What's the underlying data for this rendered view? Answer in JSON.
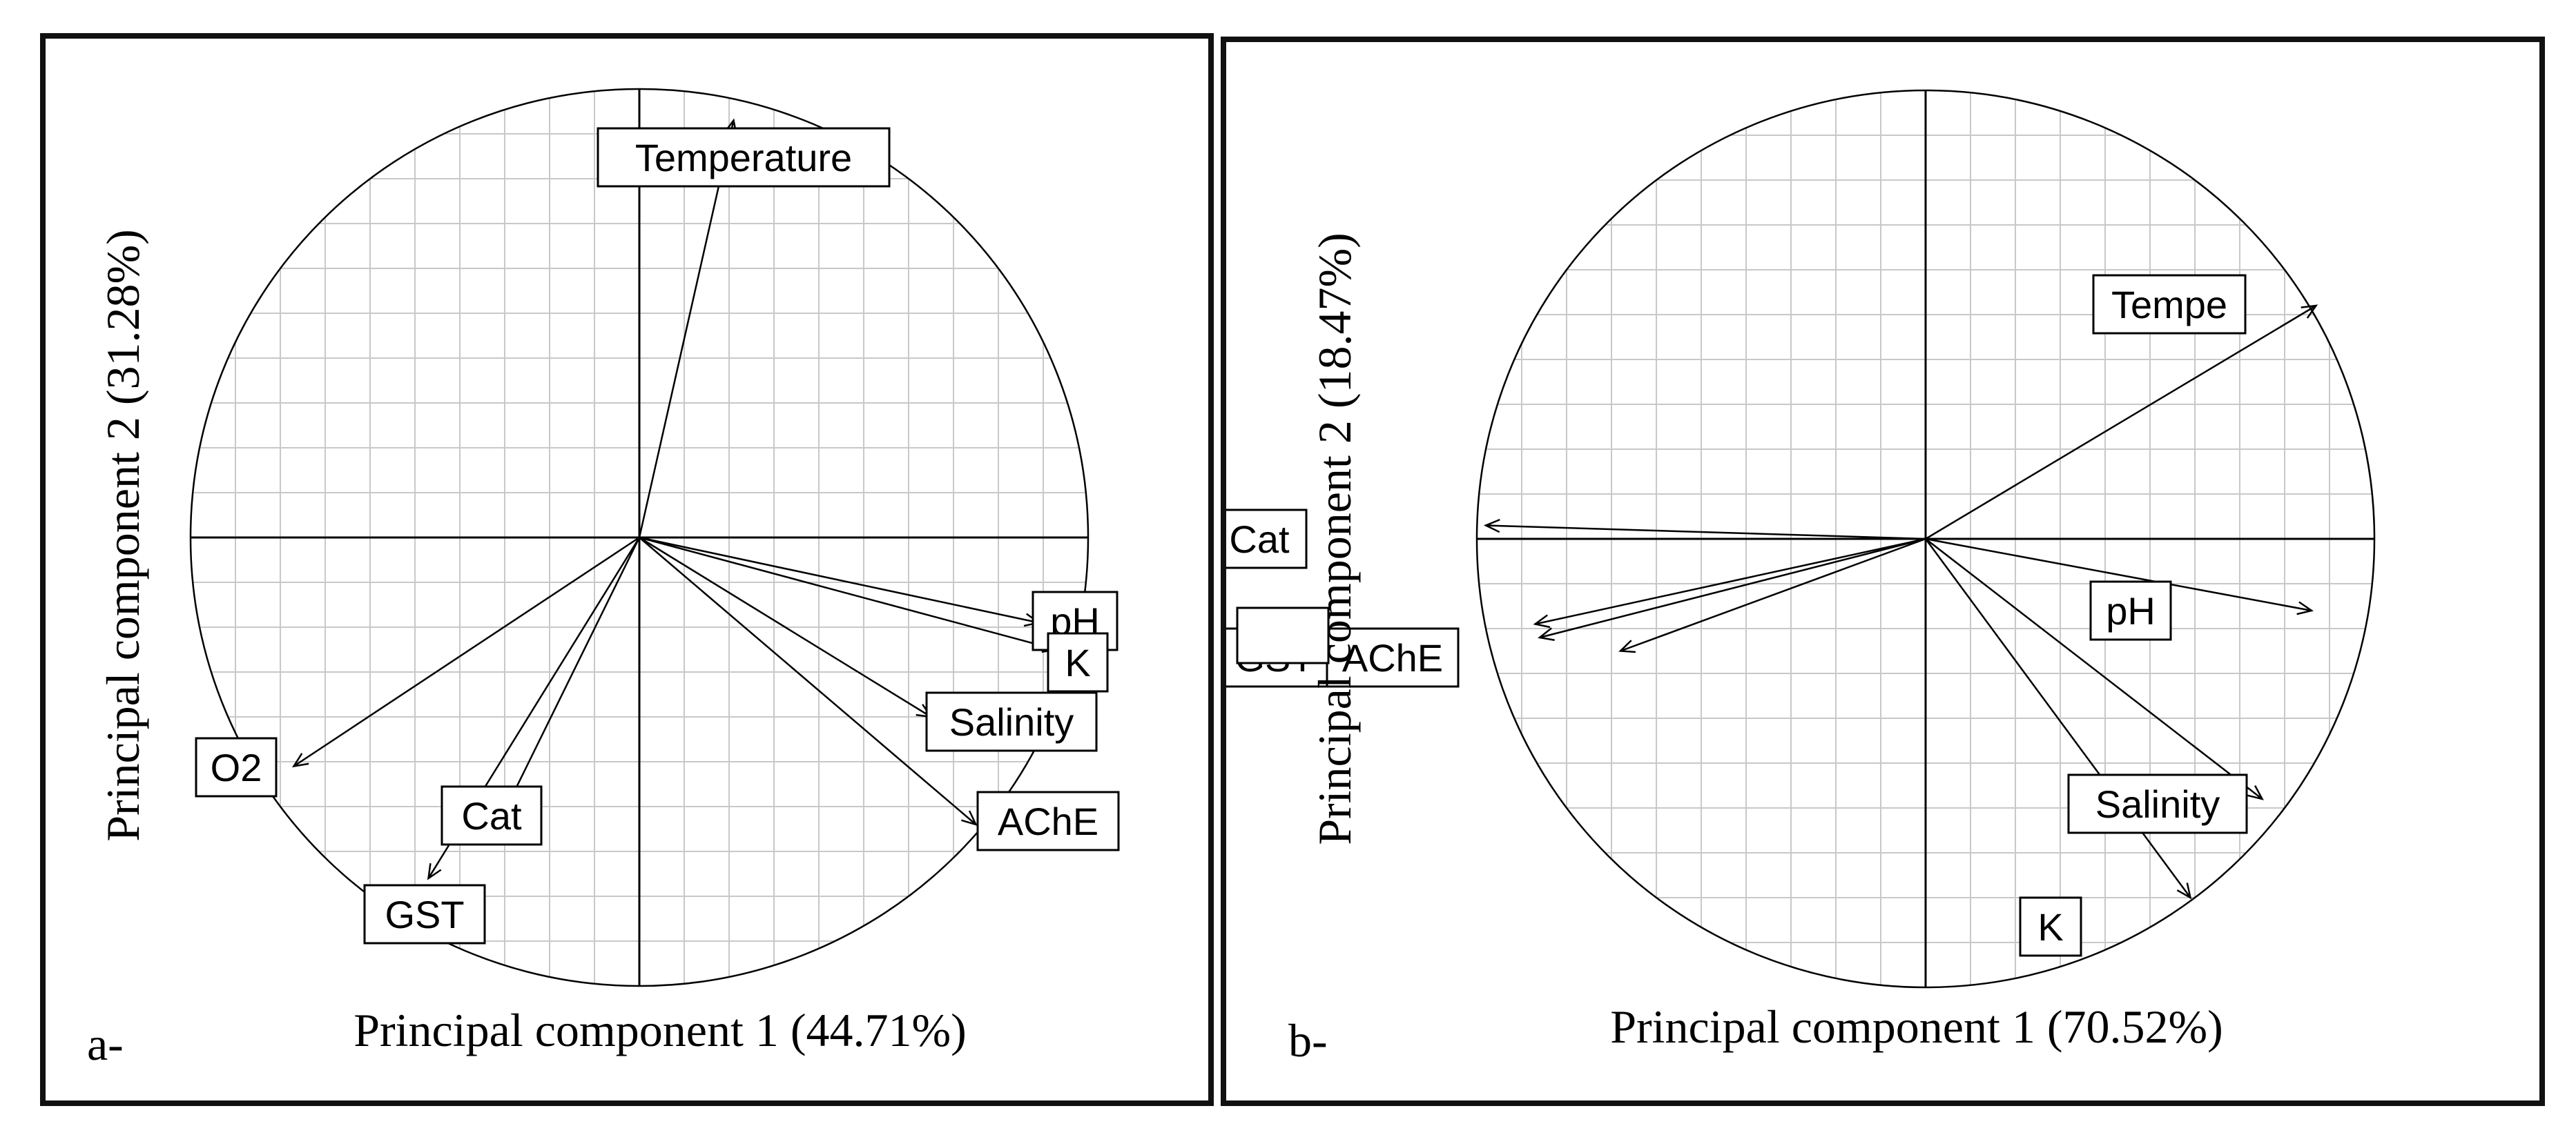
{
  "chart_data": [
    {
      "panel_label": "a-",
      "type": "scatter",
      "xlabel": "Principal component 1 (44.71%)",
      "ylabel": "Principal component 2 (31.28%)",
      "xlim": [
        -1,
        1
      ],
      "ylim": [
        -1,
        1
      ],
      "grid": true,
      "series": [
        {
          "name": "Temperature",
          "x": 0.21,
          "y": 0.93
        },
        {
          "name": "pH",
          "x": 0.89,
          "y": -0.19
        },
        {
          "name": "K",
          "x": 0.93,
          "y": -0.25
        },
        {
          "name": "Salinity",
          "x": 0.65,
          "y": -0.4
        },
        {
          "name": "AChE",
          "x": 0.75,
          "y": -0.64
        },
        {
          "name": "O2",
          "x": -0.77,
          "y": -0.51
        },
        {
          "name": "Cat",
          "x": -0.3,
          "y": -0.61
        },
        {
          "name": "GST",
          "x": -0.47,
          "y": -0.76
        }
      ]
    },
    {
      "panel_label": "b-",
      "type": "scatter",
      "xlabel": "Principal component 1 (70.52%)",
      "ylabel": "Principal component 2  (18.47%)",
      "xlim": [
        -1,
        1
      ],
      "ylim": [
        -1,
        1
      ],
      "grid": true,
      "series": [
        {
          "name": "Tempe",
          "x": 0.87,
          "y": 0.52
        },
        {
          "name": "Cat",
          "x": -0.98,
          "y": 0.03
        },
        {
          "name": "pH",
          "x": 0.86,
          "y": -0.16
        },
        {
          "name": "Salinity",
          "x": 0.75,
          "y": -0.58
        },
        {
          "name": "K",
          "x": 0.59,
          "y": -0.8
        },
        {
          "name": "GST",
          "x": -0.86,
          "y": -0.22
        },
        {
          "name": "AChE",
          "x": -0.68,
          "y": -0.25
        },
        {
          "name": "",
          "x": -0.87,
          "y": -0.19
        }
      ]
    }
  ]
}
